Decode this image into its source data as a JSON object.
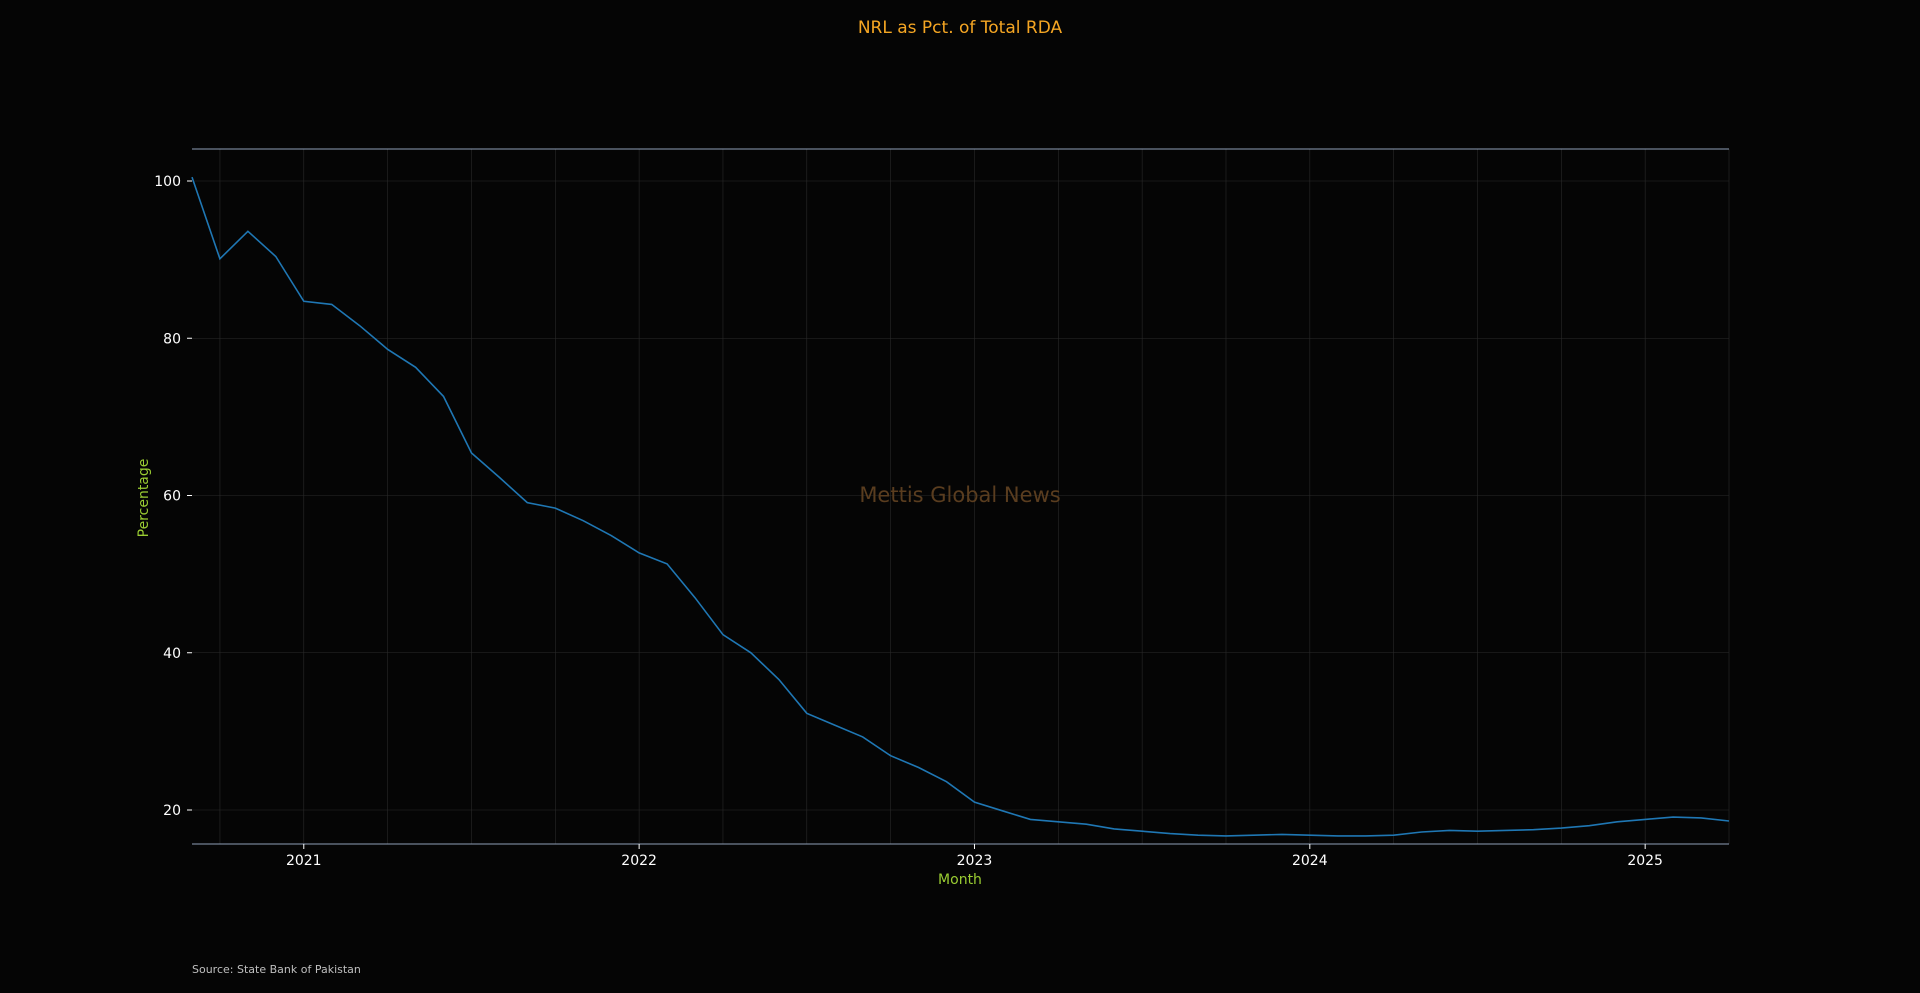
{
  "colors": {
    "background": "#050505",
    "title": "#f5a623",
    "axis_label": "#9acd32",
    "tick_label": "#ffffff",
    "line": "#1f77b4",
    "spine": "#8fa0b8",
    "grid": "#2a2a2a",
    "watermark": "#5a3d1f",
    "source": "#bfbfbf"
  },
  "chart": {
    "title": "NRL as Pct. of Total RDA",
    "watermark": "Mettis Global News",
    "source": "Source: State Bank of Pakistan"
  },
  "chart_data": {
    "type": "line",
    "title": "NRL as Pct. of Total RDA",
    "xlabel": "Month",
    "ylabel": "Percentage",
    "xlim": [
      "2020-09",
      "2025-04"
    ],
    "ylim": [
      12.5,
      104.5
    ],
    "x_ticks": [
      "2021",
      "2022",
      "2023",
      "2024",
      "2025"
    ],
    "y_ticks": [
      20,
      40,
      60,
      80,
      100
    ],
    "grid": true,
    "series": [
      {
        "x": [
          "2020-09",
          "2020-10",
          "2020-11",
          "2020-12",
          "2021-01",
          "2021-02",
          "2021-03",
          "2021-04",
          "2021-05",
          "2021-06",
          "2021-07",
          "2021-08",
          "2021-09",
          "2021-10",
          "2021-11",
          "2021-12",
          "2022-01",
          "2022-02",
          "2022-03",
          "2022-04",
          "2022-05",
          "2022-06",
          "2022-07",
          "2022-08",
          "2022-09",
          "2022-10",
          "2022-11",
          "2022-12",
          "2023-01",
          "2023-02",
          "2023-03",
          "2023-04",
          "2023-05",
          "2023-06",
          "2023-07",
          "2023-08",
          "2023-09",
          "2023-10",
          "2023-11",
          "2023-12",
          "2024-01",
          "2024-02",
          "2024-03",
          "2024-04",
          "2024-05",
          "2024-06",
          "2024-07",
          "2024-08",
          "2024-09",
          "2024-10",
          "2024-11",
          "2024-12",
          "2025-01",
          "2025-02",
          "2025-03",
          "2025-04"
        ],
        "values": [
          100.5,
          90.1,
          93.6,
          90.4,
          84.7,
          84.3,
          81.6,
          78.6,
          76.3,
          72.6,
          65.4,
          62.3,
          59.1,
          58.4,
          56.8,
          54.9,
          52.7,
          51.3,
          47.0,
          42.3,
          40.0,
          36.6,
          32.3,
          30.8,
          29.3,
          26.9,
          25.4,
          23.6,
          21.0,
          19.9,
          18.8,
          18.5,
          18.2,
          17.6,
          17.3,
          17.0,
          16.8,
          16.7,
          16.8,
          16.9,
          16.8,
          16.7,
          16.7,
          16.8,
          17.2,
          17.4,
          17.3,
          17.4,
          17.5,
          17.7,
          18.0,
          18.5,
          18.8,
          19.1,
          19.0,
          18.6
        ]
      }
    ]
  }
}
